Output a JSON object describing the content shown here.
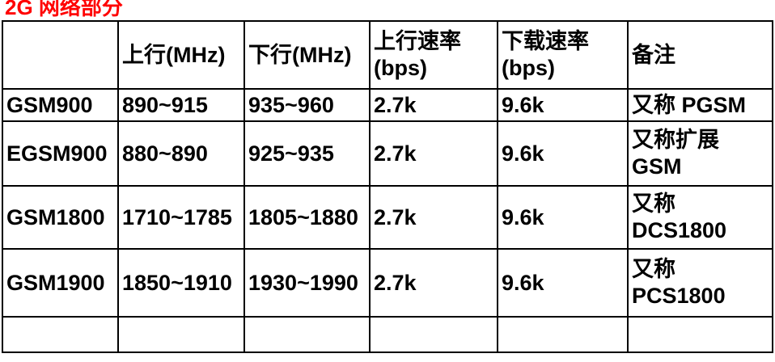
{
  "title": "2G 网络部分",
  "title_color": "#ff0000",
  "table": {
    "columns": {
      "name": "",
      "uplink": "上行(MHz)",
      "downlink": "下行(MHz)",
      "up_rate": "上行速率\n(bps)",
      "down_rate": "下载速率\n(bps)",
      "note": "备注"
    },
    "rows": [
      {
        "name": "GSM900",
        "uplink": "890~915",
        "downlink": "935~960",
        "up_rate": "2.7k",
        "down_rate": "9.6k",
        "note": "又称 PGSM"
      },
      {
        "name": "EGSM900",
        "uplink": "880~890",
        "downlink": "925~935",
        "up_rate": "2.7k",
        "down_rate": "9.6k",
        "note": "又称扩展\nGSM"
      },
      {
        "name": "GSM1800",
        "uplink": "1710~1785",
        "downlink": "1805~1880",
        "up_rate": "2.7k",
        "down_rate": "9.6k",
        "note": "又称\nDCS1800"
      },
      {
        "name": "GSM1900",
        "uplink": "1850~1910",
        "downlink": "1930~1990",
        "up_rate": "2.7k",
        "down_rate": "9.6k",
        "note": "又称\nPCS1800"
      },
      {
        "name": "",
        "uplink": "",
        "downlink": "",
        "up_rate": "",
        "down_rate": "",
        "note": ""
      }
    ]
  }
}
